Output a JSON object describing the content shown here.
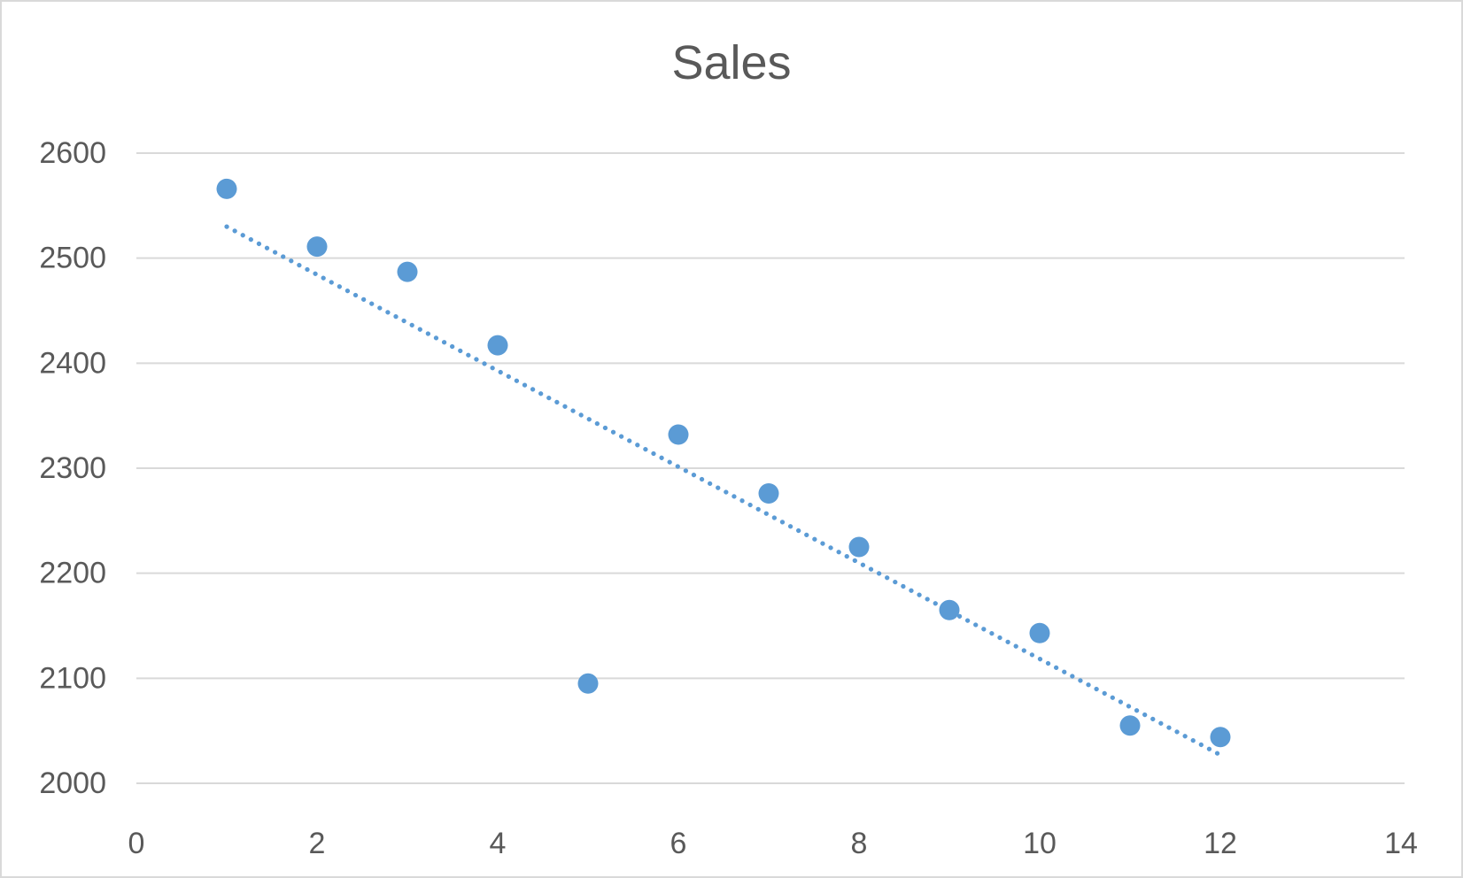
{
  "chart_data": {
    "type": "scatter",
    "title": "Sales",
    "xlabel": "",
    "ylabel": "",
    "x": [
      1,
      2,
      3,
      4,
      5,
      6,
      7,
      8,
      9,
      10,
      11,
      12
    ],
    "values": [
      2566,
      2511,
      2487,
      2417,
      2095,
      2332,
      2276,
      2225,
      2165,
      2143,
      2055,
      2044
    ],
    "series_name": "Sales",
    "trendline": {
      "type": "linear",
      "style": "dotted",
      "x_start": 1,
      "y_start": 2530,
      "x_end": 12,
      "y_end": 2027
    },
    "x_ticks": [
      "0",
      "2",
      "4",
      "6",
      "8",
      "10",
      "12",
      "14"
    ],
    "y_ticks": [
      "2000",
      "2100",
      "2200",
      "2300",
      "2400",
      "2500",
      "2600"
    ],
    "xlim": [
      0,
      14
    ],
    "ylim": [
      2000,
      2600
    ],
    "grid": "horizontal",
    "legend": "none",
    "colors": {
      "marker": "#5B9BD5",
      "trendline": "#5B9BD5",
      "gridline": "#D9D9D9",
      "text": "#595959",
      "background": "#FFFFFF",
      "border": "#D9D9D9"
    }
  }
}
